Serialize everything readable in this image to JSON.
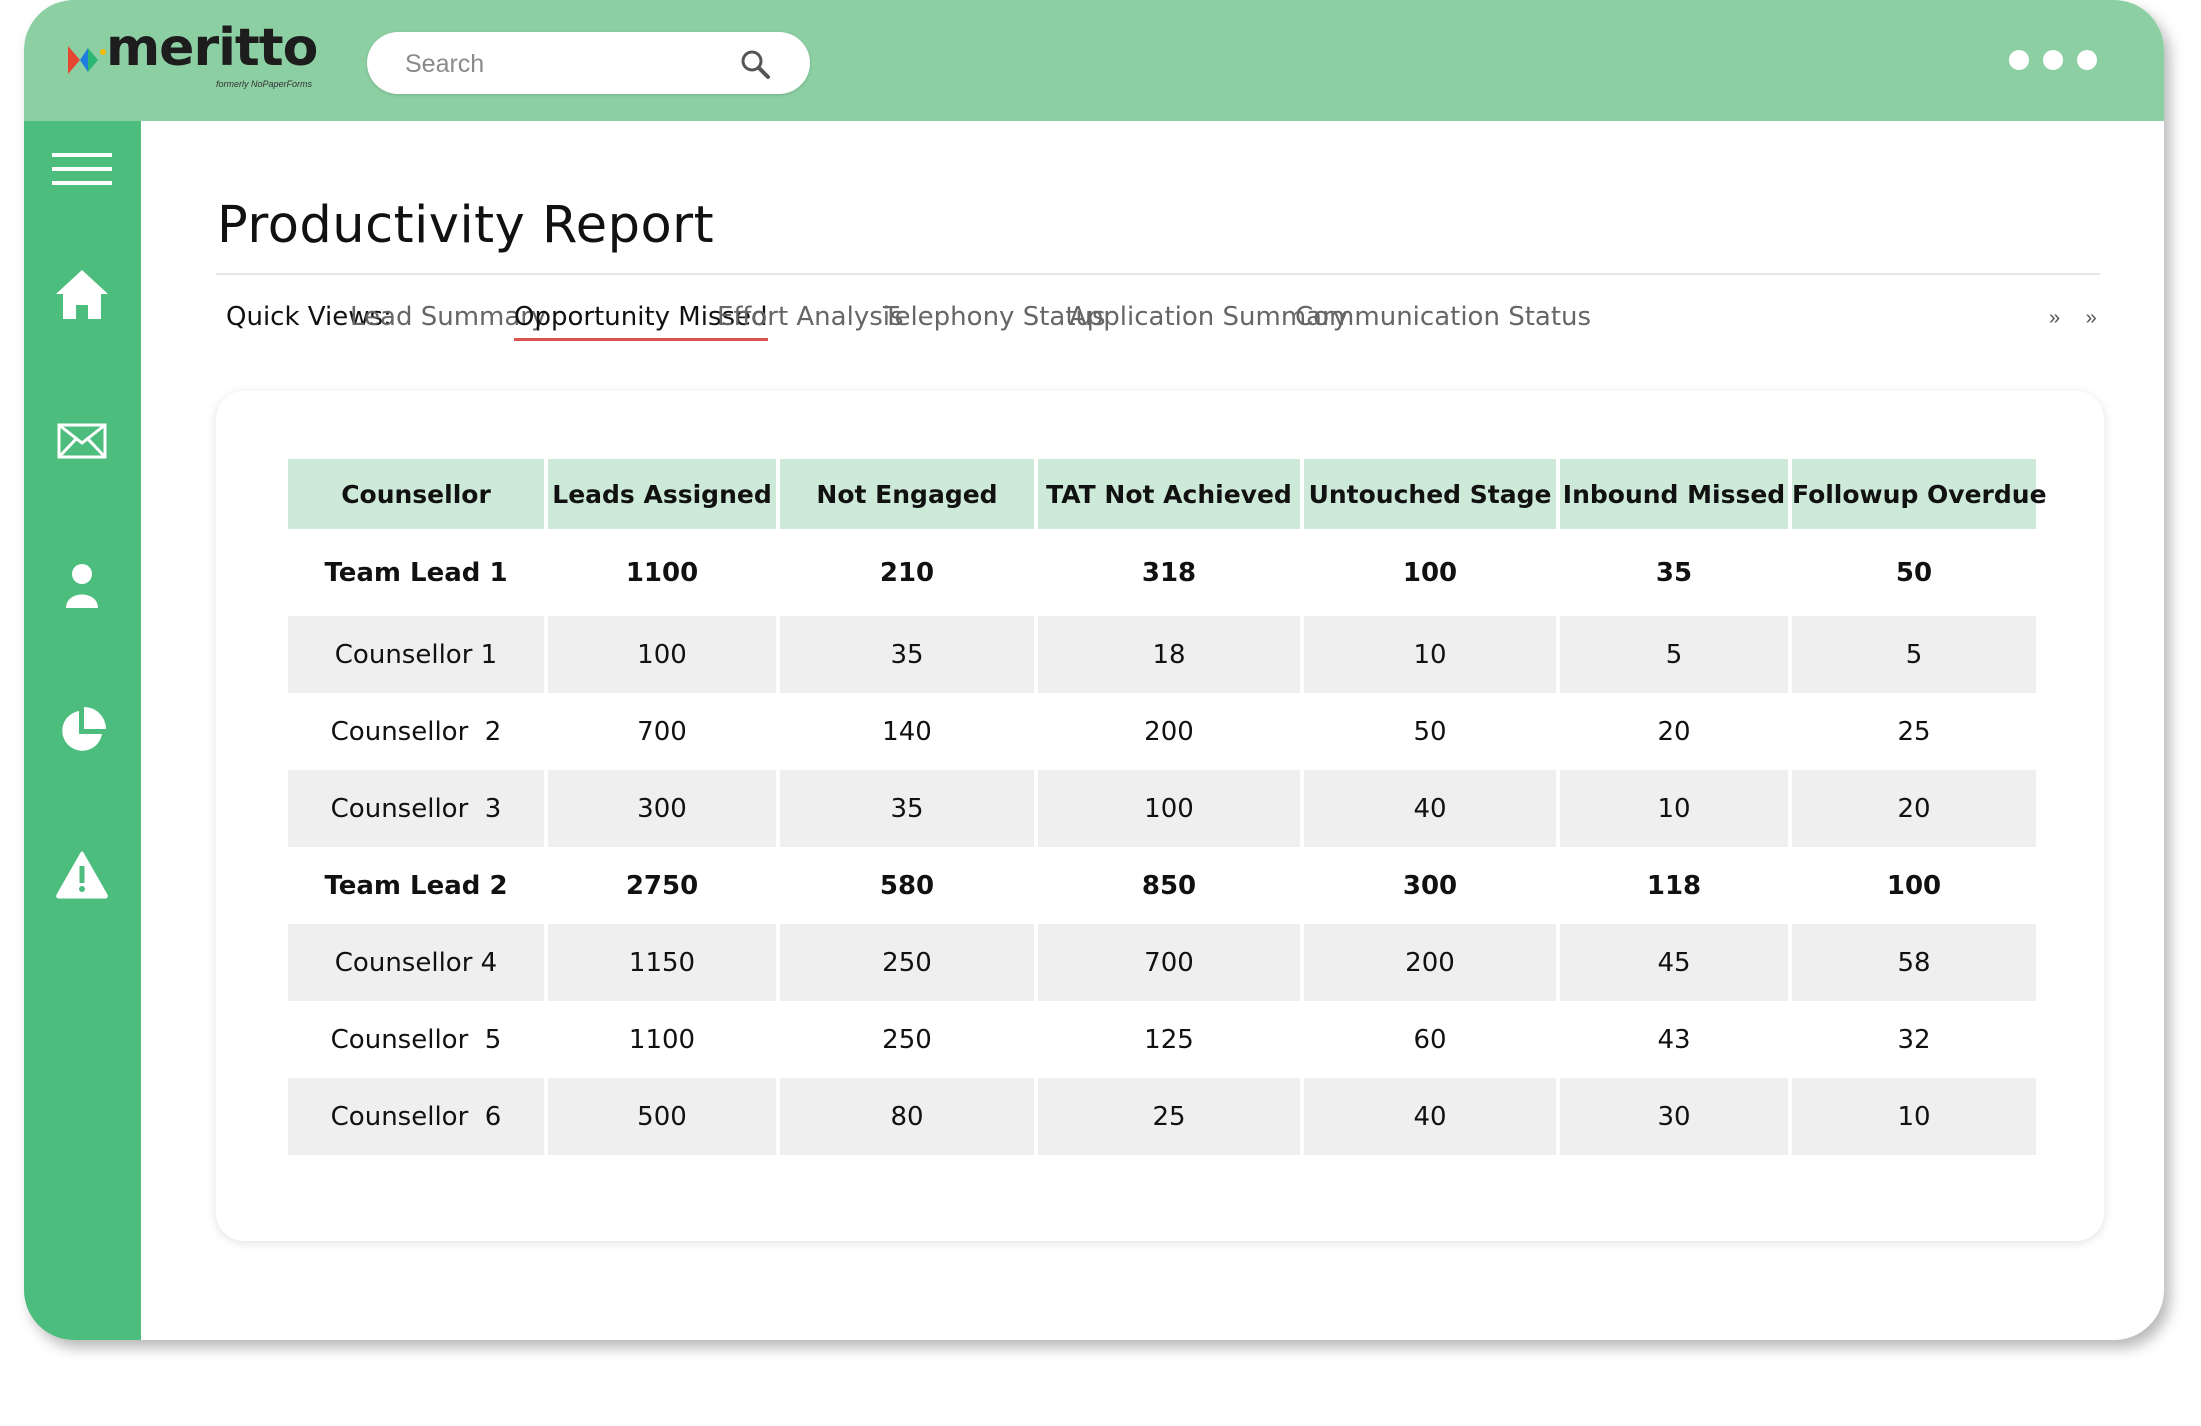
{
  "header": {
    "logo_text": "meritto",
    "logo_subtitle": "formerly NoPaperForms",
    "search": {
      "placeholder": "Search"
    }
  },
  "sidebar": {
    "items": [
      {
        "icon": "menu-icon"
      },
      {
        "icon": "home-icon"
      },
      {
        "icon": "mail-icon"
      },
      {
        "icon": "user-icon"
      },
      {
        "icon": "pie-chart-icon"
      },
      {
        "icon": "warning-icon"
      }
    ]
  },
  "page": {
    "title": "Productivity Report",
    "quick_views_label": "Quick Views:",
    "quick_views": [
      "Lead Summary",
      "Opportunity Missed",
      "Effort Analysis",
      "Telephony Status",
      "Application Summary",
      "Communication Status"
    ],
    "active_quick_view": "Opportunity Missed",
    "more_label": "» »"
  },
  "table": {
    "headers": [
      "Counsellor",
      "Leads Assigned",
      "Not Engaged",
      "TAT Not Achieved",
      "Untouched Stage",
      "Inbound Missed",
      "Followup Overdue"
    ],
    "rows": [
      [
        "Team Lead 1",
        "1100",
        "210",
        "318",
        "100",
        "35",
        "50"
      ],
      [
        "Counsellor 1",
        "100",
        "35",
        "18",
        "10",
        "5",
        "5"
      ],
      [
        "Counsellor  2",
        "700",
        "140",
        "200",
        "50",
        "20",
        "25"
      ],
      [
        "Counsellor  3",
        "300",
        "35",
        "100",
        "40",
        "10",
        "20"
      ],
      [
        "Team Lead 2",
        "2750",
        "580",
        "850",
        "300",
        "118",
        "100"
      ],
      [
        "Counsellor 4",
        "1150",
        "250",
        "700",
        "200",
        "45",
        "58"
      ],
      [
        "Counsellor  5",
        "1100",
        "250",
        "125",
        "60",
        "43",
        "32"
      ],
      [
        "Counsellor  6",
        "500",
        "80",
        "25",
        "40",
        "30",
        "10"
      ]
    ]
  },
  "colors": {
    "topbar": "#8ccfa3",
    "sidebar": "#4dbd7e",
    "header_cell": "#cde9d8",
    "active_tab_underline": "#d9534f"
  }
}
